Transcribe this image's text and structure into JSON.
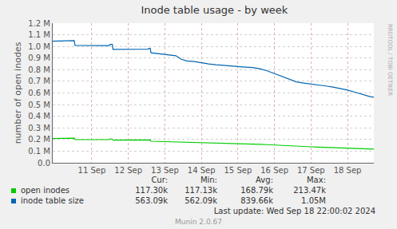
{
  "chart_data": {
    "type": "line",
    "title": "Inode table usage - by week",
    "y_label": "number of open inodes",
    "x": [
      9.93,
      10.2,
      10.44,
      10.46,
      10.52,
      10.54,
      10.8,
      11.2,
      11.48,
      11.5,
      11.56,
      11.58,
      12.0,
      12.3,
      12.54,
      12.56,
      12.6,
      12.62,
      12.9,
      13.1,
      13.3,
      13.45,
      13.6,
      13.8,
      14.0,
      14.2,
      14.4,
      14.6,
      14.8,
      15.0,
      15.2,
      15.4,
      15.6,
      15.8,
      16.0,
      16.2,
      16.4,
      16.6,
      16.8,
      17.0,
      17.2,
      17.4,
      17.6,
      17.8,
      18.0,
      18.2,
      18.4,
      18.6,
      18.72
    ],
    "series": [
      {
        "name": "open inodes",
        "color": "#00cc00",
        "values": [
          208000,
          208000,
          208000,
          213000,
          212000,
          200000,
          200000,
          199000,
          199000,
          205000,
          204000,
          194000,
          194000,
          193000,
          193000,
          197000,
          196000,
          185000,
          183000,
          181000,
          179000,
          176000,
          174000,
          173000,
          171000,
          169000,
          168000,
          166000,
          165000,
          164000,
          163000,
          161000,
          159000,
          156000,
          152000,
          148000,
          144000,
          141000,
          139000,
          137000,
          135000,
          133000,
          131000,
          128000,
          126000,
          123000,
          120000,
          118000,
          117300
        ],
        "summary": [
          "117.30k",
          "117.13k",
          "168.79k",
          "213.47k"
        ]
      },
      {
        "name": "inode table size",
        "color": "#0066b3",
        "values": [
          1045000,
          1045000,
          1045000,
          1050000,
          1050000,
          1008000,
          1008000,
          1007000,
          1007000,
          1018000,
          1018000,
          975000,
          975000,
          975000,
          976000,
          983000,
          983000,
          945000,
          935000,
          928000,
          920000,
          890000,
          875000,
          870000,
          858000,
          850000,
          842000,
          836000,
          830000,
          826000,
          822000,
          818000,
          808000,
          790000,
          765000,
          740000,
          715000,
          695000,
          685000,
          678000,
          668000,
          660000,
          650000,
          640000,
          625000,
          607000,
          588000,
          570000,
          563090
        ],
        "summary": [
          "563.09k",
          "562.09k",
          "839.66k",
          "1.05M"
        ]
      }
    ],
    "summary_columns": [
      "Cur:",
      "Min:",
      "Avg:",
      "Max:"
    ],
    "xlim": [
      9.93,
      18.72
    ],
    "xticks": [
      {
        "value": 11,
        "label": "11 Sep"
      },
      {
        "value": 12,
        "label": "12 Sep"
      },
      {
        "value": 13,
        "label": "13 Sep"
      },
      {
        "value": 14,
        "label": "14 Sep"
      },
      {
        "value": 15,
        "label": "15 Sep"
      },
      {
        "value": 16,
        "label": "16 Sep"
      },
      {
        "value": 17,
        "label": "17 Sep"
      },
      {
        "value": 18,
        "label": "18 Sep"
      }
    ],
    "ylim": [
      0,
      1200000
    ],
    "yticks": [
      {
        "value": 0,
        "label": "0.0"
      },
      {
        "value": 100000,
        "label": "0.1 M"
      },
      {
        "value": 200000,
        "label": "0.2 M"
      },
      {
        "value": 300000,
        "label": "0.3 M"
      },
      {
        "value": 400000,
        "label": "0.4 M"
      },
      {
        "value": 500000,
        "label": "0.5 M"
      },
      {
        "value": 600000,
        "label": "0.6 M"
      },
      {
        "value": 700000,
        "label": "0.7 M"
      },
      {
        "value": 800000,
        "label": "0.8 M"
      },
      {
        "value": 900000,
        "label": "0.9 M"
      },
      {
        "value": 1000000,
        "label": "1.0 M"
      },
      {
        "value": 1100000,
        "label": "1.1 M"
      },
      {
        "value": 1200000,
        "label": "1.2 M"
      }
    ],
    "grid": true,
    "last_update": "Last update: Wed Sep 18 22:00:02 2024",
    "footer": "Munin 2.0.67",
    "side_text": "RRDTOOL / TOBI OETIKER"
  }
}
